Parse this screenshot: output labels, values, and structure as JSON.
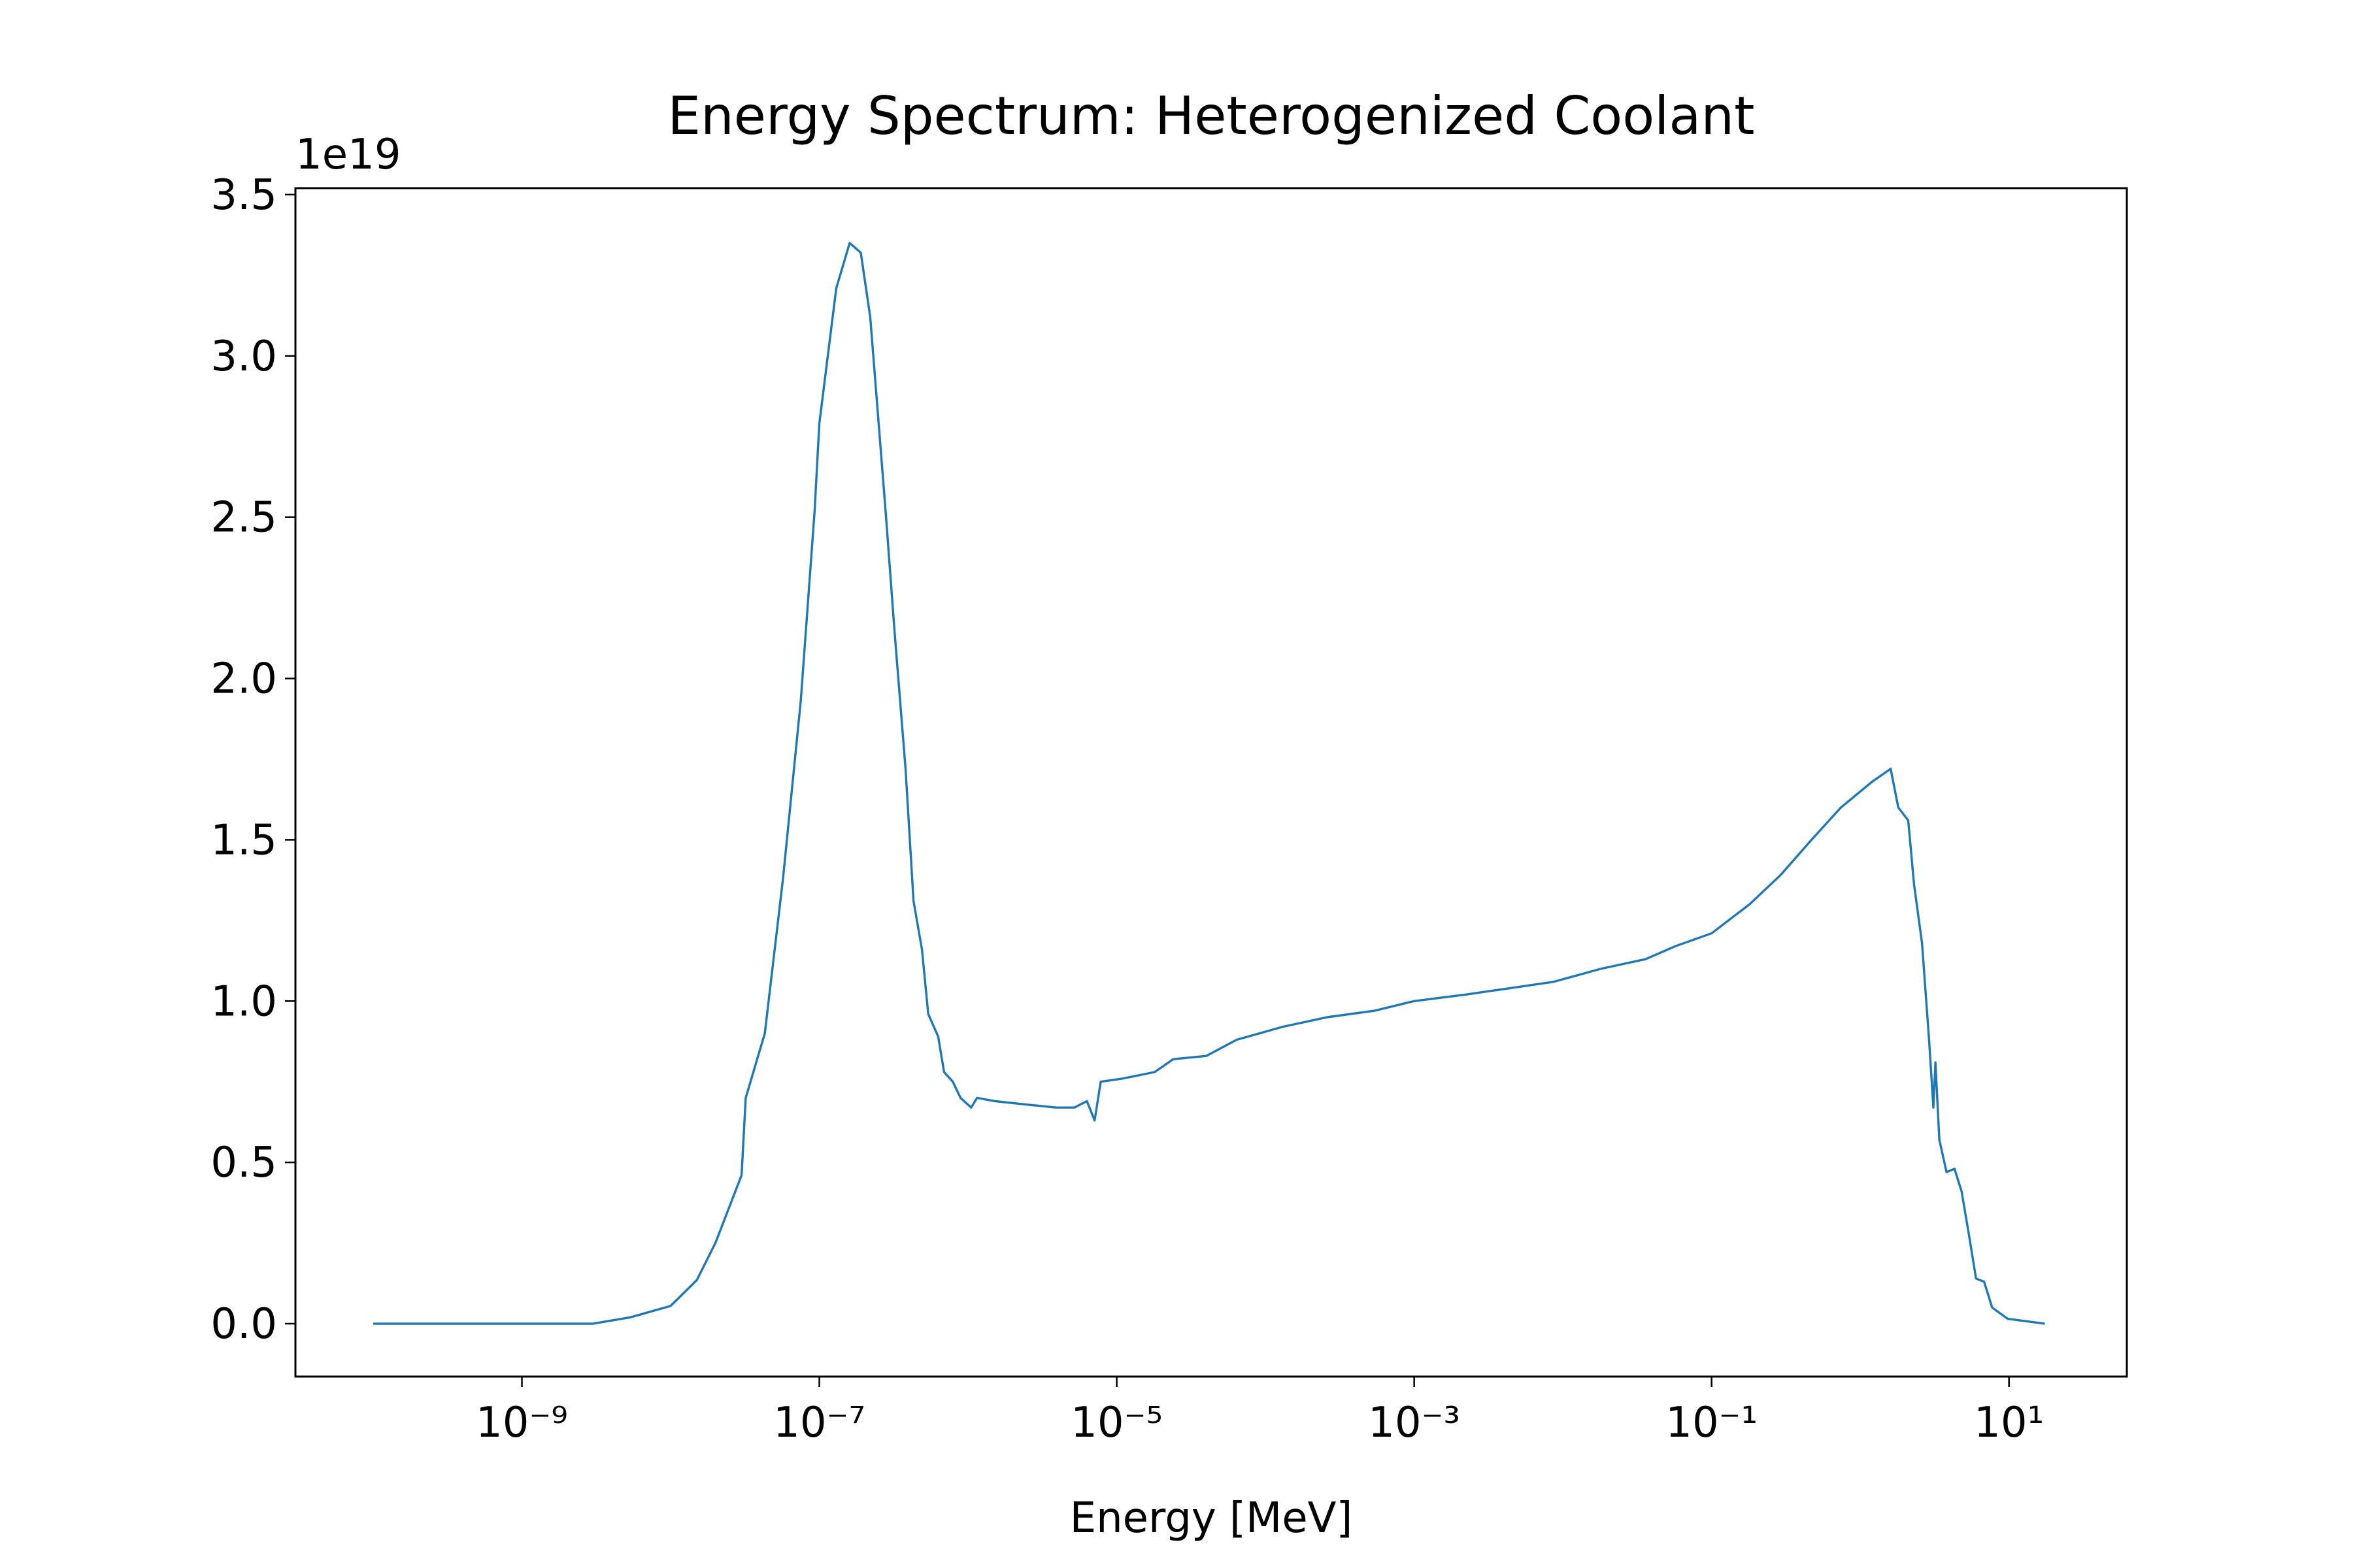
{
  "chart_data": {
    "type": "line",
    "title": "Energy Spectrum: Heterogenized Coolant",
    "xlabel": "Energy [MeV]",
    "y_offset_label": "1e19",
    "xscale": "log",
    "color": "#1f77b4",
    "x": [
      1e-10,
      3e-09,
      5.4e-09,
      1e-08,
      1.5e-08,
      2e-08,
      3e-08,
      3.2e-08,
      4.3e-08,
      5.7e-08,
      7.5e-08,
      9.3e-08,
      1e-07,
      1.3e-07,
      1.6e-07,
      1.9e-07,
      2.2e-07,
      2.8e-07,
      3.2e-07,
      3.8e-07,
      4.3e-07,
      4.9e-07,
      5.4e-07,
      6.3e-07,
      6.9e-07,
      7.9e-07,
      8.9e-07,
      1.05e-06,
      1.15e-06,
      1.5e-06,
      2.4e-06,
      3.9e-06,
      5.2e-06,
      6.3e-06,
      7.1e-06,
      7.8e-06,
      1.1e-05,
      1.8e-05,
      2.4e-05,
      4e-05,
      6.4e-05,
      0.00013,
      0.00026,
      0.00054,
      0.001,
      0.0022,
      0.0044,
      0.0087,
      0.018,
      0.036,
      0.057,
      0.1,
      0.18,
      0.29,
      0.47,
      0.74,
      1.2,
      1.6,
      1.8,
      2.1,
      2.3,
      2.6,
      2.9,
      3.1,
      3.2,
      3.4,
      3.8,
      4.3,
      4.8,
      5.4,
      6.0,
      6.8,
      7.7,
      9.8,
      17.4
    ],
    "values": [
      0,
      0,
      0.02,
      0.055,
      0.135,
      0.25,
      0.46,
      0.7,
      0.9,
      1.38,
      1.93,
      2.52,
      2.79,
      3.21,
      3.35,
      3.32,
      3.12,
      2.51,
      2.15,
      1.72,
      1.31,
      1.16,
      0.96,
      0.89,
      0.78,
      0.75,
      0.7,
      0.67,
      0.7,
      0.69,
      0.68,
      0.67,
      0.67,
      0.69,
      0.63,
      0.75,
      0.76,
      0.78,
      0.82,
      0.83,
      0.88,
      0.92,
      0.95,
      0.97,
      1.0,
      1.02,
      1.04,
      1.06,
      1.1,
      1.13,
      1.17,
      1.21,
      1.3,
      1.39,
      1.5,
      1.6,
      1.68,
      1.72,
      1.6,
      1.56,
      1.36,
      1.18,
      0.88,
      0.67,
      0.81,
      0.57,
      0.47,
      0.48,
      0.41,
      0.27,
      0.14,
      0.13,
      0.05,
      0.015,
      0
    ],
    "xlim": [
      3e-11,
      62
    ],
    "ylim": [
      -0.164,
      3.52
    ],
    "xticks": [
      {
        "value": 1e-09,
        "label": "10⁻⁹"
      },
      {
        "value": 1e-07,
        "label": "10⁻⁷"
      },
      {
        "value": 1e-05,
        "label": "10⁻⁵"
      },
      {
        "value": 0.001,
        "label": "10⁻³"
      },
      {
        "value": 0.1,
        "label": "10⁻¹"
      },
      {
        "value": 10,
        "label": "10¹"
      }
    ],
    "yticks": [
      {
        "value": 0,
        "label": "0.0"
      },
      0.5,
      {
        "value": 1,
        "label": "1.0"
      },
      1.5,
      {
        "value": 2,
        "label": "2.0"
      },
      2.5,
      {
        "value": 3,
        "label": "3.0"
      },
      3.5
    ]
  }
}
